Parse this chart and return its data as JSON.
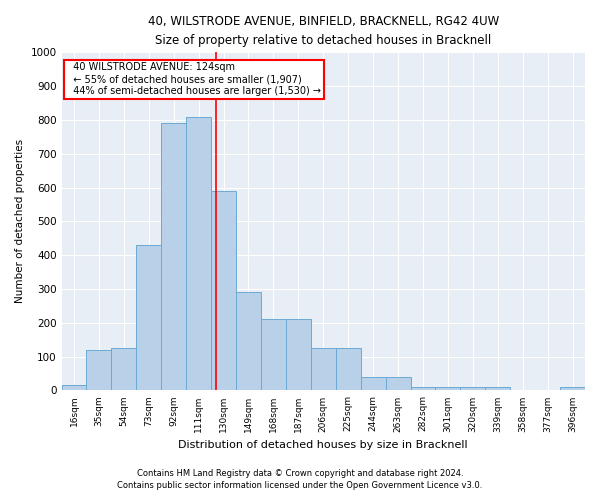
{
  "title1": "40, WILSTRODE AVENUE, BINFIELD, BRACKNELL, RG42 4UW",
  "title2": "Size of property relative to detached houses in Bracknell",
  "xlabel": "Distribution of detached houses by size in Bracknell",
  "ylabel": "Number of detached properties",
  "footnote1": "Contains HM Land Registry data © Crown copyright and database right 2024.",
  "footnote2": "Contains public sector information licensed under the Open Government Licence v3.0.",
  "bin_labels": [
    "16sqm",
    "35sqm",
    "54sqm",
    "73sqm",
    "92sqm",
    "111sqm",
    "130sqm",
    "149sqm",
    "168sqm",
    "187sqm",
    "206sqm",
    "225sqm",
    "244sqm",
    "263sqm",
    "282sqm",
    "301sqm",
    "320sqm",
    "339sqm",
    "358sqm",
    "377sqm",
    "396sqm"
  ],
  "bar_values": [
    15,
    120,
    125,
    430,
    790,
    810,
    590,
    290,
    212,
    212,
    125,
    125,
    40,
    40,
    10,
    10,
    10,
    10,
    0,
    0,
    10
  ],
  "bar_color": "#b8d0e8",
  "bar_edgecolor": "#6aaad4",
  "annotation_label": "40 WILSTRODE AVENUE: 124sqm",
  "annotation_line1": "← 55% of detached houses are smaller (1,907)",
  "annotation_line2": "44% of semi-detached houses are larger (1,530) →",
  "annotation_box_color": "white",
  "annotation_box_edgecolor": "red",
  "vline_color": "red",
  "bg_color": "#e8eef5",
  "ylim": [
    0,
    1000
  ],
  "yticks": [
    0,
    100,
    200,
    300,
    400,
    500,
    600,
    700,
    800,
    900,
    1000
  ]
}
